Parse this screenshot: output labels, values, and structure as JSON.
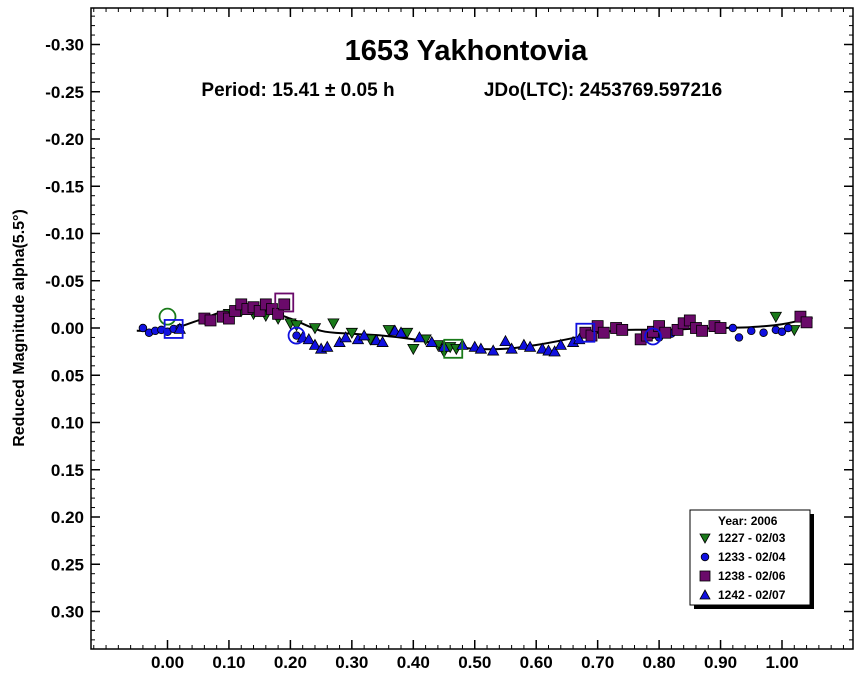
{
  "chart_data": {
    "type": "scatter",
    "title": "1653 Yakhontovia",
    "period_text": "Period: 15.41 ± 0.05 h",
    "epoch_text": "JDo(LTC): 2453769.597216",
    "xlabel": "",
    "ylabel": "Reduced Magnitude alpha(5.5°)",
    "xlim": [
      -0.12,
      1.12
    ],
    "ylim": [
      -0.34,
      0.34
    ],
    "y_inverted": true,
    "x_ticks": [
      0.0,
      0.1,
      0.2,
      0.3,
      0.4,
      0.5,
      0.6,
      0.7,
      0.8,
      0.9,
      1.0
    ],
    "x_tick_labels": [
      "0.00",
      "0.10",
      "0.20",
      "0.30",
      "0.40",
      "0.50",
      "0.60",
      "0.70",
      "0.80",
      "0.90",
      "1.00"
    ],
    "y_ticks": [
      -0.3,
      -0.25,
      -0.2,
      -0.15,
      -0.1,
      -0.05,
      0.0,
      0.05,
      0.1,
      0.15,
      0.2,
      0.25,
      0.3
    ],
    "y_tick_labels": [
      "-0.30",
      "-0.25",
      "-0.20",
      "-0.15",
      "-0.10",
      "-0.05",
      "0.00",
      "0.05",
      "0.10",
      "0.15",
      "0.20",
      "0.25",
      "0.30"
    ],
    "legend": {
      "title": "Year: 2006",
      "position": "bottom-right"
    },
    "fit_curve": {
      "x": [
        -0.05,
        0.0,
        0.05,
        0.1,
        0.15,
        0.2,
        0.25,
        0.3,
        0.35,
        0.4,
        0.45,
        0.5,
        0.55,
        0.6,
        0.65,
        0.7,
        0.75,
        0.8,
        0.85,
        0.9,
        0.95,
        1.0,
        1.05
      ],
      "y": [
        0.003,
        0.002,
        -0.008,
        -0.019,
        -0.02,
        -0.01,
        0.003,
        0.006,
        0.008,
        0.012,
        0.018,
        0.022,
        0.022,
        0.018,
        0.012,
        0.005,
        0.002,
        0.002,
        0.001,
        0.0,
        -0.001,
        -0.004,
        -0.011
      ]
    },
    "series": [
      {
        "name": "1227 - 02/03",
        "color": "#1a7a1a",
        "marker": "triangle-down",
        "x": [
          0.06,
          0.1,
          0.12,
          0.14,
          0.16,
          0.18,
          0.2,
          0.21,
          0.24,
          0.27,
          0.3,
          0.33,
          0.36,
          0.39,
          0.4,
          0.42,
          0.44,
          0.45,
          0.46,
          0.47,
          0.99,
          1.02
        ],
        "y": [
          -0.01,
          -0.015,
          -0.018,
          -0.015,
          -0.013,
          -0.01,
          -0.005,
          -0.003,
          0.0,
          -0.005,
          0.005,
          0.012,
          0.002,
          0.005,
          0.022,
          0.012,
          0.018,
          0.025,
          0.02,
          0.022,
          -0.012,
          0.002
        ],
        "highlight": {
          "shape": "circle",
          "x": 0.0,
          "y": -0.012
        }
      },
      {
        "name": "1233 - 02/04",
        "color": "#1010e0",
        "marker": "circle",
        "x": [
          -0.04,
          -0.03,
          -0.02,
          -0.01,
          0.0,
          0.01,
          0.02,
          0.21,
          0.79,
          0.8,
          0.82,
          0.92,
          0.93,
          0.95,
          0.97,
          0.99,
          1.0,
          1.01
        ],
        "y": [
          0.0,
          0.005,
          0.003,
          0.002,
          0.004,
          0.001,
          0.0,
          0.008,
          0.007,
          0.01,
          0.006,
          0.0,
          0.01,
          0.003,
          0.005,
          0.002,
          0.004,
          0.0
        ],
        "highlight": {
          "shape": "circle",
          "x": 0.21,
          "y": 0.008
        }
      },
      {
        "name": "1238 - 02/06",
        "color": "#6a0a6a",
        "marker": "square",
        "x": [
          0.06,
          0.07,
          0.09,
          0.1,
          0.11,
          0.12,
          0.13,
          0.14,
          0.15,
          0.16,
          0.17,
          0.18,
          0.19,
          0.68,
          0.69,
          0.7,
          0.71,
          0.73,
          0.74,
          0.77,
          0.78,
          0.79,
          0.8,
          0.81,
          0.83,
          0.84,
          0.85,
          0.86,
          0.87,
          0.89,
          0.9,
          1.03,
          1.04
        ],
        "y": [
          -0.01,
          -0.008,
          -0.012,
          -0.01,
          -0.018,
          -0.025,
          -0.02,
          -0.022,
          -0.018,
          -0.025,
          -0.02,
          -0.015,
          -0.025,
          0.005,
          0.008,
          -0.002,
          0.005,
          0.0,
          0.002,
          0.012,
          0.008,
          0.004,
          -0.002,
          0.005,
          0.002,
          -0.005,
          -0.008,
          0.0,
          0.003,
          -0.002,
          0.0,
          -0.012,
          -0.006
        ],
        "highlight": {
          "shape": "square",
          "x": 0.19,
          "y": -0.027
        }
      },
      {
        "name": "1242 - 02/07",
        "color": "#1010e0",
        "marker": "triangle-up",
        "x": [
          0.02,
          0.22,
          0.23,
          0.24,
          0.25,
          0.26,
          0.28,
          0.29,
          0.31,
          0.32,
          0.34,
          0.35,
          0.37,
          0.38,
          0.41,
          0.43,
          0.45,
          0.48,
          0.5,
          0.51,
          0.53,
          0.55,
          0.56,
          0.58,
          0.59,
          0.61,
          0.62,
          0.63,
          0.64,
          0.66,
          0.67
        ],
        "y": [
          0.001,
          0.01,
          0.012,
          0.018,
          0.022,
          0.02,
          0.015,
          0.01,
          0.012,
          0.008,
          0.013,
          0.015,
          0.003,
          0.005,
          0.01,
          0.015,
          0.02,
          0.018,
          0.02,
          0.022,
          0.024,
          0.014,
          0.022,
          0.018,
          0.02,
          0.022,
          0.024,
          0.025,
          0.018,
          0.015,
          0.012
        ],
        "highlight": {
          "shape": "square",
          "x": 0.68,
          "y": 0.005
        }
      }
    ],
    "extra_highlights": [
      {
        "shape": "square",
        "color": "#1010e0",
        "x": 0.01,
        "y": 0.001
      },
      {
        "shape": "square",
        "color": "#1a7a1a",
        "x": 0.465,
        "y": 0.022
      },
      {
        "shape": "circle",
        "color": "#1010e0",
        "x": 0.79,
        "y": 0.009
      }
    ]
  }
}
